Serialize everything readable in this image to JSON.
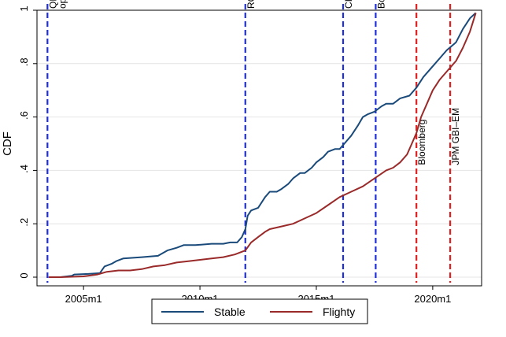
{
  "chart_data": {
    "type": "line",
    "title": "",
    "xlabel": "",
    "ylabel": "CDF",
    "xlim": [
      2003.0,
      2022.1
    ],
    "ylim": [
      0,
      1
    ],
    "grid": "horizontal",
    "legend_position": "bottom",
    "x_ticks": [
      {
        "value": 2005,
        "label": "2005m1"
      },
      {
        "value": 2010,
        "label": "2010m1"
      },
      {
        "value": 2015,
        "label": "2015m1"
      },
      {
        "value": 2020,
        "label": "2020m1"
      }
    ],
    "y_ticks": [
      {
        "value": 0,
        "label": "0"
      },
      {
        "value": 0.2,
        "label": ".2"
      },
      {
        "value": 0.4,
        "label": ".4"
      },
      {
        "value": 0.6,
        "label": ".6"
      },
      {
        "value": 0.8,
        "label": ".8"
      },
      {
        "value": 1,
        "label": "1"
      }
    ],
    "events": [
      {
        "x": 2003.45,
        "label_lines": [
          "opening",
          "QFII"
        ],
        "color": "#1f2ee0",
        "label_position": "top"
      },
      {
        "x": 2011.95,
        "label_lines": [
          "RQFII"
        ],
        "color": "#1f2ee0",
        "label_position": "top"
      },
      {
        "x": 2016.15,
        "label_lines": [
          "CIBM Direct"
        ],
        "color": "#1f2ee0",
        "label_position": "top"
      },
      {
        "x": 2017.55,
        "label_lines": [
          "Bond Connect"
        ],
        "color": "#1f2ee0",
        "label_position": "top"
      },
      {
        "x": 2019.3,
        "label_lines": [
          "Bloomberg"
        ],
        "color": "#e02020",
        "label_position": "middle"
      },
      {
        "x": 2020.75,
        "label_lines": [
          "JPM GBI–EM"
        ],
        "color": "#e02020",
        "label_position": "middle"
      }
    ],
    "series": [
      {
        "name": "Stable",
        "color": "#1a4a7a",
        "x": [
          2003.5,
          2004.0,
          2004.5,
          2004.6,
          2005.2,
          2005.7,
          2005.9,
          2006.2,
          2006.4,
          2006.7,
          2007.5,
          2008.2,
          2008.6,
          2009.0,
          2009.3,
          2009.8,
          2010.5,
          2011.0,
          2011.3,
          2011.6,
          2011.8,
          2011.95,
          2012.05,
          2012.2,
          2012.5,
          2012.8,
          2013.0,
          2013.3,
          2013.5,
          2013.8,
          2014.0,
          2014.3,
          2014.5,
          2014.8,
          2015.0,
          2015.3,
          2015.5,
          2015.8,
          2016.0,
          2016.2,
          2016.5,
          2016.8,
          2017.0,
          2017.2,
          2017.5,
          2017.8,
          2018.0,
          2018.3,
          2018.6,
          2019.0,
          2019.3,
          2019.6,
          2020.0,
          2020.3,
          2020.6,
          2021.0,
          2021.3,
          2021.6,
          2021.85
        ],
        "y": [
          0.0,
          0.0,
          0.005,
          0.01,
          0.012,
          0.015,
          0.04,
          0.05,
          0.06,
          0.07,
          0.075,
          0.08,
          0.1,
          0.11,
          0.12,
          0.12,
          0.125,
          0.125,
          0.13,
          0.13,
          0.15,
          0.18,
          0.23,
          0.25,
          0.26,
          0.3,
          0.32,
          0.32,
          0.33,
          0.35,
          0.37,
          0.39,
          0.39,
          0.41,
          0.43,
          0.45,
          0.47,
          0.48,
          0.48,
          0.5,
          0.53,
          0.57,
          0.6,
          0.61,
          0.62,
          0.64,
          0.65,
          0.65,
          0.67,
          0.68,
          0.71,
          0.75,
          0.79,
          0.82,
          0.85,
          0.88,
          0.93,
          0.97,
          0.99
        ]
      },
      {
        "name": "Flighty",
        "color": "#9a2a2a",
        "x": [
          2003.5,
          2004.0,
          2005.0,
          2005.6,
          2006.0,
          2006.5,
          2007.0,
          2007.5,
          2008.0,
          2008.5,
          2009.0,
          2009.5,
          2010.0,
          2010.5,
          2011.0,
          2011.5,
          2011.95,
          2012.2,
          2012.5,
          2012.8,
          2013.0,
          2013.5,
          2014.0,
          2014.5,
          2015.0,
          2015.5,
          2016.0,
          2016.5,
          2017.0,
          2017.5,
          2018.0,
          2018.3,
          2018.6,
          2018.9,
          2019.1,
          2019.3,
          2019.5,
          2019.8,
          2020.0,
          2020.3,
          2020.6,
          2021.0,
          2021.3,
          2021.6,
          2021.85
        ],
        "y": [
          0.0,
          0.0,
          0.003,
          0.01,
          0.02,
          0.025,
          0.025,
          0.03,
          0.04,
          0.045,
          0.055,
          0.06,
          0.065,
          0.07,
          0.075,
          0.085,
          0.1,
          0.13,
          0.15,
          0.17,
          0.18,
          0.19,
          0.2,
          0.22,
          0.24,
          0.27,
          0.3,
          0.32,
          0.34,
          0.37,
          0.4,
          0.41,
          0.43,
          0.46,
          0.5,
          0.54,
          0.6,
          0.66,
          0.7,
          0.74,
          0.77,
          0.81,
          0.86,
          0.92,
          0.99
        ]
      }
    ]
  }
}
